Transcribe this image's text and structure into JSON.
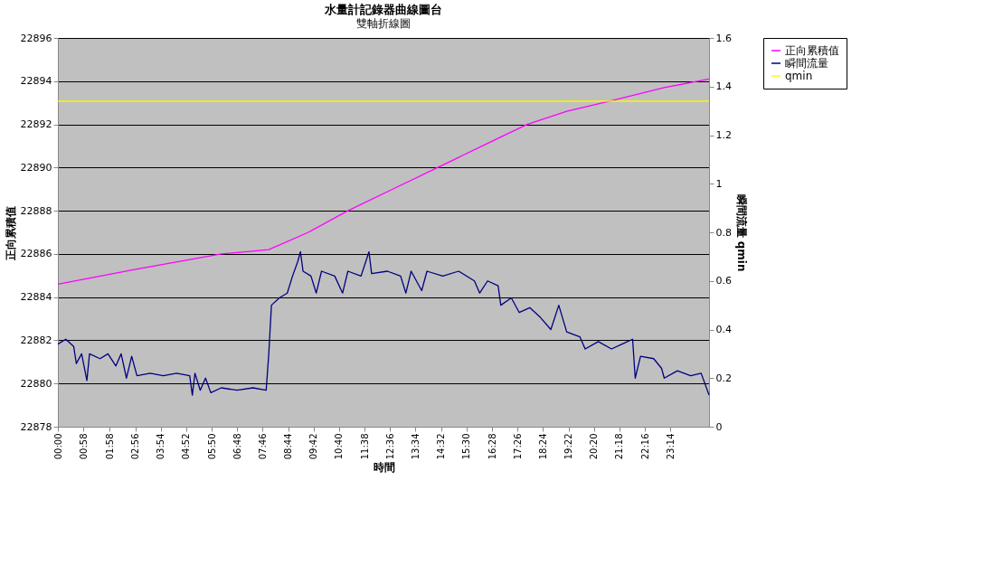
{
  "chart_data": {
    "type": "line",
    "title": "水量計記錄器曲線圖台",
    "subtitle": "雙軸折線圖",
    "xlabel": "時間",
    "ylabel": "正向累積值",
    "y2label": "瞬間流量 qmin",
    "xlim": [
      0,
      24.7
    ],
    "xticks": [
      {
        "value": 0,
        "label": "00:00"
      },
      {
        "value": 0.9667,
        "label": "00:58"
      },
      {
        "value": 1.9667,
        "label": "01:58"
      },
      {
        "value": 2.9333,
        "label": "02:56"
      },
      {
        "value": 3.9,
        "label": "03:54"
      },
      {
        "value": 4.8667,
        "label": "04:52"
      },
      {
        "value": 5.8333,
        "label": "05:50"
      },
      {
        "value": 6.8,
        "label": "06:48"
      },
      {
        "value": 7.7667,
        "label": "07:46"
      },
      {
        "value": 8.7333,
        "label": "08:44"
      },
      {
        "value": 9.7,
        "label": "09:42"
      },
      {
        "value": 10.6667,
        "label": "10:40"
      },
      {
        "value": 11.6333,
        "label": "11:38"
      },
      {
        "value": 12.6,
        "label": "12:36"
      },
      {
        "value": 13.5667,
        "label": "13:34"
      },
      {
        "value": 14.5333,
        "label": "14:32"
      },
      {
        "value": 15.5,
        "label": "15:30"
      },
      {
        "value": 16.4667,
        "label": "16:28"
      },
      {
        "value": 17.4333,
        "label": "17:26"
      },
      {
        "value": 18.4,
        "label": "18:24"
      },
      {
        "value": 19.3667,
        "label": "19:22"
      },
      {
        "value": 20.3333,
        "label": "20:20"
      },
      {
        "value": 21.3,
        "label": "21:18"
      },
      {
        "value": 22.2667,
        "label": "22:16"
      },
      {
        "value": 23.2333,
        "label": "23:14"
      }
    ],
    "ylim": [
      22878,
      22896
    ],
    "yticks": [
      22878,
      22880,
      22882,
      22884,
      22886,
      22888,
      22890,
      22892,
      22894,
      22896
    ],
    "y2lim": [
      0,
      1.6
    ],
    "y2ticks": [
      0,
      0.2,
      0.4,
      0.6,
      0.8,
      1,
      1.2,
      1.4,
      1.6
    ],
    "grid": "y",
    "legend": "right",
    "line_style": "solid",
    "marker": "none",
    "series": [
      {
        "name": "正向累積值",
        "color": "#ff00ff",
        "x": [
          0,
          3,
          6.2,
          8.0,
          9.5,
          11.0,
          12.7,
          14.4,
          16.1,
          17.8,
          19.3,
          21.0,
          23.0,
          24.7
        ],
        "values": [
          22884.6,
          22885.3,
          22886.0,
          22886.2,
          22887.0,
          22888,
          22889,
          22890,
          22891,
          22892,
          22892.6,
          22893.1,
          22893.7,
          22894.1
        ]
      },
      {
        "name": "瞬間流量",
        "color": "#000080",
        "axis": "y2",
        "x": [
          0,
          0.3,
          0.6,
          0.7,
          0.9,
          1.1,
          1.2,
          1.6,
          1.9,
          2.2,
          2.4,
          2.6,
          2.8,
          3.0,
          3.5,
          4.0,
          4.5,
          5.0,
          5.1,
          5.2,
          5.4,
          5.6,
          5.8,
          6.2,
          6.8,
          7.4,
          7.9,
          8.0,
          8.1,
          8.4,
          8.7,
          8.9,
          9.1,
          9.2,
          9.3,
          9.6,
          9.8,
          10.0,
          10.5,
          10.8,
          11.0,
          11.5,
          11.8,
          11.9,
          12.5,
          13.0,
          13.2,
          13.4,
          13.8,
          14.0,
          14.6,
          15.2,
          15.8,
          16.0,
          16.3,
          16.7,
          16.8,
          17.2,
          17.5,
          17.9,
          18.3,
          18.7,
          19.0,
          19.3,
          19.8,
          20.0,
          20.5,
          21.0,
          21.4,
          21.8,
          21.9,
          22.1,
          22.6,
          22.9,
          23.0,
          23.5,
          24.0,
          24.4,
          24.7
        ],
        "values": [
          0.34,
          0.36,
          0.33,
          0.26,
          0.3,
          0.19,
          0.3,
          0.28,
          0.3,
          0.25,
          0.3,
          0.2,
          0.29,
          0.21,
          0.22,
          0.21,
          0.22,
          0.21,
          0.13,
          0.22,
          0.15,
          0.2,
          0.14,
          0.16,
          0.15,
          0.16,
          0.15,
          0.3,
          0.5,
          0.53,
          0.55,
          0.62,
          0.68,
          0.72,
          0.64,
          0.62,
          0.55,
          0.64,
          0.62,
          0.55,
          0.64,
          0.62,
          0.72,
          0.63,
          0.64,
          0.62,
          0.55,
          0.64,
          0.56,
          0.64,
          0.62,
          0.64,
          0.6,
          0.55,
          0.6,
          0.58,
          0.5,
          0.53,
          0.47,
          0.49,
          0.45,
          0.4,
          0.5,
          0.39,
          0.37,
          0.32,
          0.35,
          0.32,
          0.34,
          0.36,
          0.2,
          0.29,
          0.28,
          0.24,
          0.2,
          0.23,
          0.21,
          0.22,
          0.13
        ]
      },
      {
        "name": "qmin",
        "color": "#ffff00",
        "axis": "y2",
        "x": [
          0,
          24.7
        ],
        "values": [
          1.34,
          1.34
        ]
      }
    ]
  }
}
